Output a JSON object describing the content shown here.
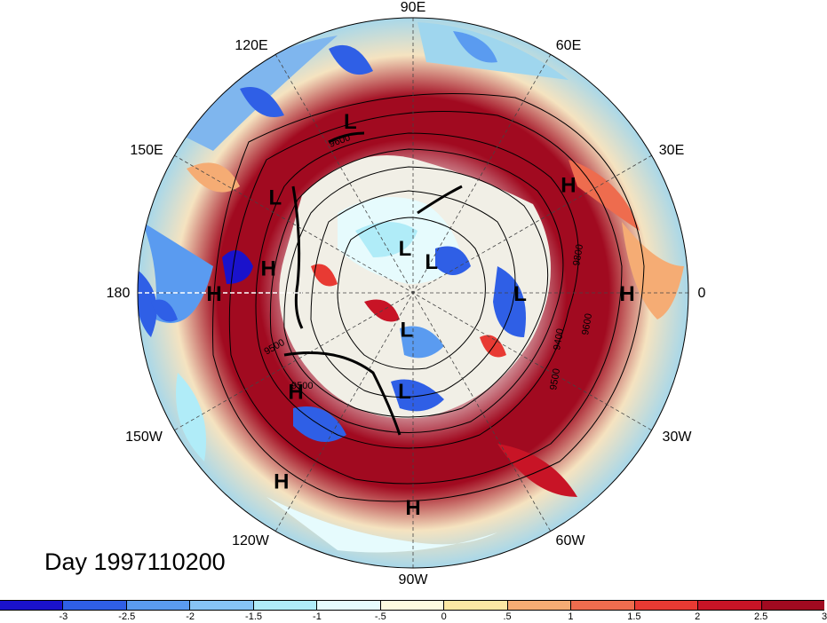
{
  "title": "Day 1997110200",
  "longitude_labels": {
    "e90": "90E",
    "e60": "60E",
    "e30": "30E",
    "lon0": "0",
    "w30": "30W",
    "w60": "60W",
    "w90": "90W",
    "w120": "120W",
    "w150": "150W",
    "lon180": "180",
    "e150": "150E",
    "e120": "120E"
  },
  "pressure_systems": [
    {
      "label": "L",
      "lon": 110,
      "lat": 30
    },
    {
      "label": "L",
      "lon": 145,
      "lat": 35
    },
    {
      "label": "H",
      "lon": 170,
      "lat": 42
    },
    {
      "label": "H",
      "lon": 180,
      "lat": 25
    },
    {
      "label": "H",
      "lon": 35,
      "lat": 28
    },
    {
      "label": "H",
      "lon": 0,
      "lat": 20
    },
    {
      "label": "L",
      "lon": 0,
      "lat": 55
    },
    {
      "label": "L",
      "lon": 100,
      "lat": 75
    },
    {
      "label": "L",
      "lon": 60,
      "lat": 78
    },
    {
      "label": "L",
      "lon": 260,
      "lat": 78
    },
    {
      "label": "L",
      "lon": 265,
      "lat": 58
    },
    {
      "label": "H",
      "lon": 220,
      "lat": 40
    },
    {
      "label": "H",
      "lon": 235,
      "lat": 15
    },
    {
      "label": "H",
      "lon": 270,
      "lat": 20
    }
  ],
  "contour_labels": [
    "9500",
    "9400",
    "9500",
    "9600",
    "9800",
    "9500",
    "9600"
  ],
  "colorbar": {
    "colors": [
      "#1a12cc",
      "#2f5fe6",
      "#5a9bf0",
      "#86c4f5",
      "#b0ecf8",
      "#e6fbfd",
      "#fdfbe0",
      "#fce8a4",
      "#f5ac74",
      "#ee6c4e",
      "#e83a33",
      "#c81426",
      "#a10a20"
    ],
    "labels": [
      "-3",
      "-2.5",
      "-2",
      "-1.5",
      "-1",
      "-.5",
      "0",
      ".5",
      "1",
      "1.5",
      "2",
      "2.5",
      "3"
    ]
  }
}
